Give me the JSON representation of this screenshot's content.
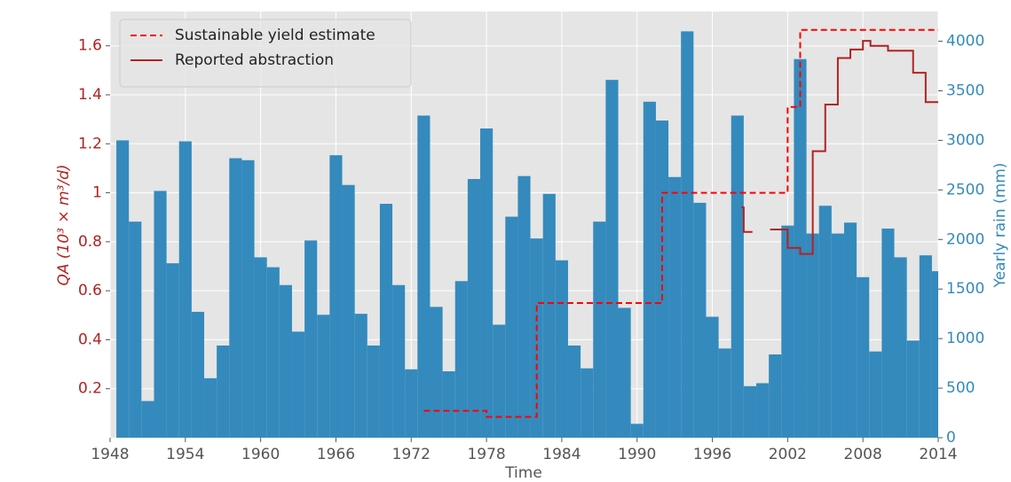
{
  "chart_data": {
    "type": "combo",
    "xlabel": "Time",
    "ylabel": "QA (10³ × m³/d)",
    "y2label": "Yearly rain (mm)",
    "xlim": [
      1948,
      2014
    ],
    "xticks": [
      1948,
      1954,
      1960,
      1966,
      1972,
      1978,
      1984,
      1990,
      1996,
      2002,
      2008,
      2014
    ],
    "ylim": [
      0,
      1.74
    ],
    "yticks": [
      0.2,
      0.4,
      0.6,
      0.8,
      1.0,
      1.2,
      1.4,
      1.6
    ],
    "y2lim": [
      0,
      4300
    ],
    "y2ticks": [
      0,
      500,
      1000,
      1500,
      2000,
      2500,
      3000,
      3500,
      4000
    ],
    "ycolor": "#b22222",
    "y2color": "#348abd",
    "grid": true,
    "legend": "upper left",
    "series": [
      {
        "type": "bar",
        "axis": "y2",
        "color": "#348abd",
        "x": [
          1949,
          1950,
          1951,
          1952,
          1953,
          1954,
          1955,
          1956,
          1957,
          1958,
          1959,
          1960,
          1961,
          1962,
          1963,
          1964,
          1965,
          1966,
          1967,
          1968,
          1969,
          1970,
          1971,
          1972,
          1973,
          1974,
          1975,
          1976,
          1977,
          1978,
          1979,
          1980,
          1981,
          1982,
          1983,
          1984,
          1985,
          1986,
          1987,
          1988,
          1989,
          1990,
          1991,
          1992,
          1993,
          1994,
          1995,
          1996,
          1997,
          1998,
          1999,
          2000,
          2001,
          2002,
          2003,
          2004,
          2005,
          2006,
          2007,
          2008,
          2009,
          2010,
          2011,
          2012,
          2013,
          2014
        ],
        "values": [
          3000,
          2180,
          370,
          2490,
          1760,
          2990,
          1270,
          600,
          930,
          2820,
          2800,
          1820,
          1720,
          1540,
          1070,
          1990,
          1240,
          2850,
          2550,
          1250,
          930,
          2360,
          1540,
          690,
          3250,
          1320,
          670,
          1580,
          2610,
          3120,
          1140,
          2230,
          2640,
          2010,
          2460,
          1790,
          930,
          700,
          2180,
          3610,
          1310,
          140,
          3390,
          3200,
          2630,
          4100,
          2370,
          1220,
          900,
          3250,
          520,
          550,
          840,
          2140,
          3820,
          2060,
          2340,
          2060,
          2170,
          1620,
          870,
          2110,
          1820,
          980,
          1840,
          1680
        ]
      },
      {
        "type": "step",
        "name": "Sustainable yield estimate",
        "color": "#ff0000",
        "dashed": true,
        "x": [
          1973,
          1978,
          1982,
          1992,
          2002,
          2003,
          2014
        ],
        "values": [
          0.11,
          0.085,
          0.55,
          1.0,
          1.35,
          1.665,
          1.665
        ]
      },
      {
        "type": "step",
        "name": "Reported abstraction",
        "color": "#b22222",
        "dashed": false,
        "x": [
          1998.3,
          1998.5,
          1999.2,
          2000,
          2000.6,
          2002,
          2003,
          2004,
          2005,
          2006,
          2007,
          2008,
          2008.6,
          2010,
          2012,
          2013,
          2014
        ],
        "values": [
          0.94,
          0.84,
          0.84,
          null,
          0.85,
          0.775,
          0.75,
          1.17,
          1.36,
          1.55,
          1.585,
          1.62,
          1.6,
          1.58,
          1.49,
          1.37,
          1.37
        ]
      }
    ]
  }
}
